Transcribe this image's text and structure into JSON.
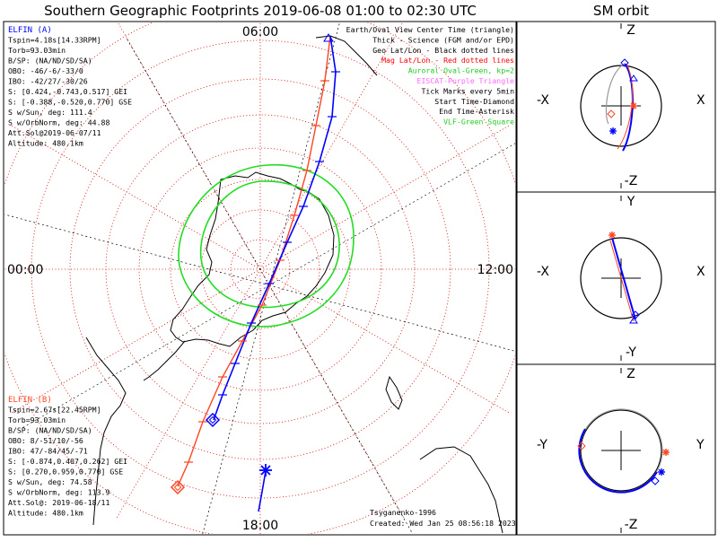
{
  "window": {
    "title": "Southern Geographic Footprints 2019-06-08 01:00 to 02:30 UTC",
    "sm_title": "SM orbit"
  },
  "colors": {
    "elfin_a": "#0000ff",
    "elfin_b": "#ff4422",
    "grid": "#cc0000",
    "oval": "#22dd22",
    "orbit_gray": "#999999",
    "eiscat": "#ff66ff"
  },
  "chart_data": [
    {
      "type": "map",
      "projection": "south-polar-stereographic",
      "title": "Southern Geographic Footprints 2019-06-08 01:00 to 02:30 UTC",
      "mlt_labels": {
        "top": "06:00",
        "left": "00:00",
        "right": "12:00",
        "bottom": "18:00"
      },
      "grid": true,
      "legend_placement": "top-right",
      "legend": [
        {
          "text": "Earth/Oval View Center Time (triangle)",
          "color": "#000000"
        },
        {
          "text": "Thick - Science (FGM and/or EPD)",
          "color": "#000000"
        },
        {
          "text": "Geo Lat/Lon - Black dotted lines",
          "color": "#000000"
        },
        {
          "text": "Mag Lat/Lon - Red dotted lines",
          "color": "#ff0000"
        },
        {
          "text": "Auroral Oval-Green, kp=2",
          "color": "#22cc22"
        },
        {
          "text": "EISCAT-Purple Triangle",
          "color": "#ff66ff"
        },
        {
          "text": "Tick Marks every 5min",
          "color": "#000000"
        },
        {
          "text": "Start Time-Diamond",
          "color": "#000000"
        },
        {
          "text": "End Time-Asterisk",
          "color": "#000000"
        },
        {
          "text": "VLF-Green Square",
          "color": "#22cc22"
        }
      ],
      "info_a": [
        "ELFIN (A)",
        "Tspin=4.18s[14.33RPM]",
        "Torb=93.03min",
        "B/SP: (NA/ND/SD/SA)",
        "OBO: -46/-6/-33/0",
        "IBO: -42/27/-30/26",
        "S: [0.424,-0.743,0.517] GEI",
        "S: [-0.388,-0.520,0.770] GSE",
        "S w/Sun, deg: 111.4",
        "S w/OrbNorm, deg: 44.88",
        "Att.Sol@2019-06-07/11",
        "Altitude: 480.1km"
      ],
      "info_b": [
        "ELFIN (B)",
        "Tspin=2.67s[22.45RPM]",
        "Torb=93.03min",
        "B/SP: (NA/ND/SD/SA)",
        "OBO: 8/-51/10/-56",
        "IBO: 47/-84/45/-71",
        "S: [-0.874,0.407,0.262] GEI",
        "S: [0.270,0.959,0.770] GSE",
        "S w/Sun, deg: 74.58",
        "S w/OrbNorm, deg: 113.9",
        "Att.Sol@: 2019-06-18/11",
        "Altitude: 480.1km"
      ],
      "credits": [
        "Tsyganenko-1996",
        "Created: Wed Jan 25 08:56:18 2023"
      ]
    },
    {
      "type": "line",
      "title": "SM orbit",
      "panels": [
        {
          "plane": "X-Z",
          "axes": {
            "top": "Z",
            "bottom": "-Z",
            "left": "-X",
            "right": "X"
          }
        },
        {
          "plane": "X-Y",
          "axes": {
            "top": "Y",
            "bottom": "-Y",
            "left": "-X",
            "right": "X"
          }
        },
        {
          "plane": "Y-Z",
          "axes": {
            "top": "Z",
            "bottom": "-Z",
            "left": "-Y",
            "right": "Y"
          }
        }
      ]
    }
  ]
}
